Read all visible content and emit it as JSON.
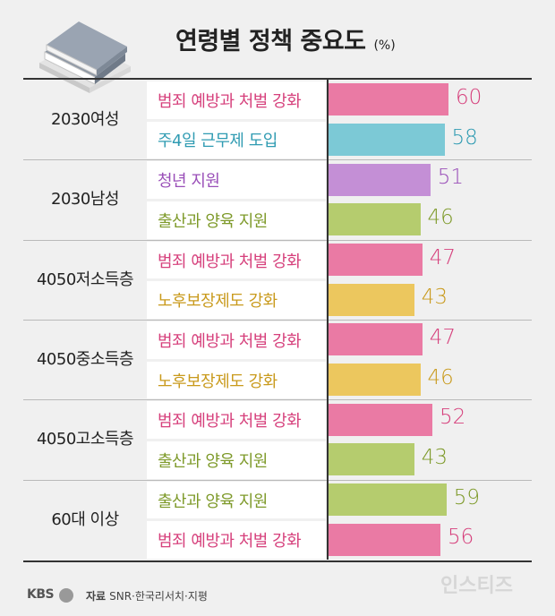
{
  "header": {
    "title": "연령별 정책 중요도",
    "unit": "(%)"
  },
  "colors": {
    "pink": "#ea7aa4",
    "cyan": "#7cc9d6",
    "purple": "#c48fd6",
    "green": "#b5cc6e",
    "yellow": "#ecc75e",
    "text_pink": "#d6407c",
    "text_cyan": "#2f9bb2",
    "text_purple": "#9a4fb8",
    "text_green": "#7e9a2a",
    "text_yellow": "#c99a1c"
  },
  "chart_data": {
    "type": "bar",
    "orientation": "horizontal",
    "title": "연령별 정책 중요도",
    "unit": "(%)",
    "groups": [
      {
        "name": "2030여성",
        "items": [
          {
            "policy": "범죄 예방과 처벌 강화",
            "value": 60,
            "color": "pink"
          },
          {
            "policy": "주4일 근무제 도입",
            "value": 58,
            "color": "cyan"
          }
        ]
      },
      {
        "name": "2030남성",
        "items": [
          {
            "policy": "청년 지원",
            "value": 51,
            "color": "purple"
          },
          {
            "policy": "출산과 양육 지원",
            "value": 46,
            "color": "green"
          }
        ]
      },
      {
        "name": "4050저소득층",
        "items": [
          {
            "policy": "범죄 예방과 처벌 강화",
            "value": 47,
            "color": "pink"
          },
          {
            "policy": "노후보장제도 강화",
            "value": 43,
            "color": "yellow"
          }
        ]
      },
      {
        "name": "4050중소득층",
        "items": [
          {
            "policy": "범죄 예방과 처벌 강화",
            "value": 47,
            "color": "pink"
          },
          {
            "policy": "노후보장제도 강화",
            "value": 46,
            "color": "yellow"
          }
        ]
      },
      {
        "name": "4050고소득층",
        "items": [
          {
            "policy": "범죄 예방과 처벌 강화",
            "value": 52,
            "color": "pink"
          },
          {
            "policy": "출산과 양육 지원",
            "value": 43,
            "color": "green"
          }
        ]
      },
      {
        "name": "60대 이상",
        "items": [
          {
            "policy": "출산과 양육 지원",
            "value": 59,
            "color": "green"
          },
          {
            "policy": "범죄 예방과 처벌 강화",
            "value": 56,
            "color": "pink"
          }
        ]
      }
    ],
    "value_range": [
      0,
      60
    ]
  },
  "footer": {
    "brand": "KBS",
    "source_label": "자료",
    "source_text": "SNR·한국리서치·지평",
    "watermark": "인스티즈"
  }
}
